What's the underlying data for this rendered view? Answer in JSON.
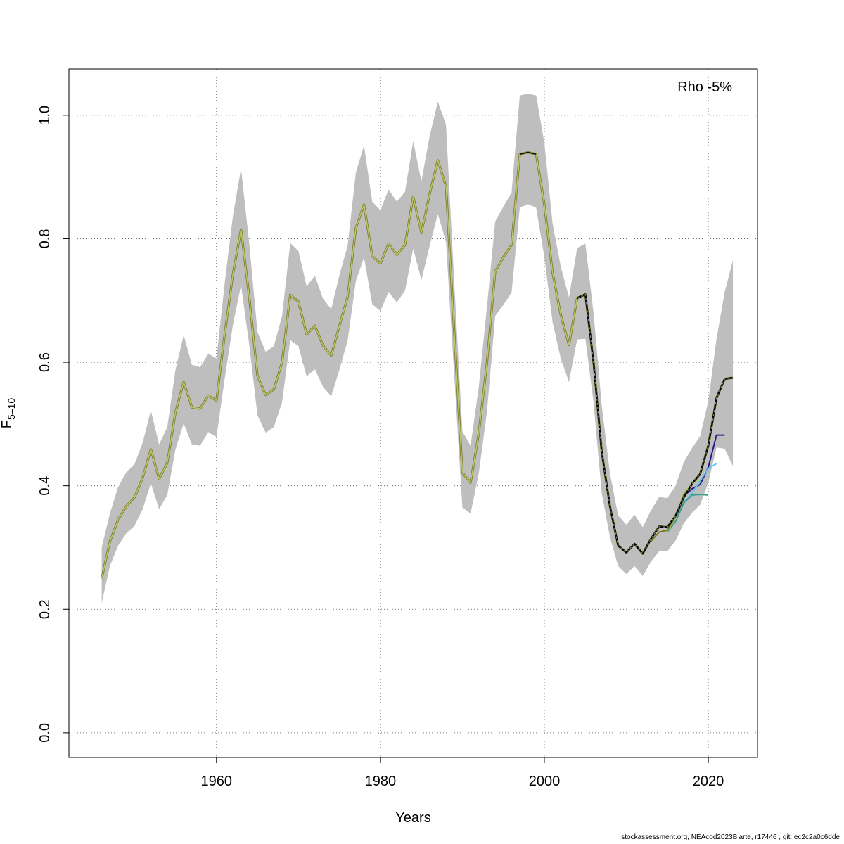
{
  "chart_data": {
    "type": "line",
    "annotation": "Rho -5%",
    "xlabel": "Years",
    "ylabel_main": "F",
    "ylabel_sub": "5–10",
    "xlim": [
      1942,
      2026
    ],
    "ylim": [
      -0.04,
      1.075
    ],
    "xticks": [
      1960,
      1980,
      2000,
      2020
    ],
    "yticks": [
      0.0,
      0.2,
      0.4,
      0.6,
      0.8,
      1.0
    ],
    "grid": true,
    "footer": "stockassessment.org, NEAcod2023Bjarte, r17446 , git: ec2c2a0c6dde",
    "colors": {
      "band": "#bebebe",
      "main": "#000000",
      "dashed": "#888888",
      "peels": [
        "#2a1b84",
        "#5fc6f2",
        "#3a9e8c",
        "#b9c56b",
        "#7a7a22",
        "#c8a030"
      ]
    },
    "x": [
      1946,
      1947,
      1948,
      1949,
      1950,
      1951,
      1952,
      1953,
      1954,
      1955,
      1956,
      1957,
      1958,
      1959,
      1960,
      1961,
      1962,
      1963,
      1964,
      1965,
      1966,
      1967,
      1968,
      1969,
      1970,
      1971,
      1972,
      1973,
      1974,
      1975,
      1976,
      1977,
      1978,
      1979,
      1980,
      1981,
      1982,
      1983,
      1984,
      1985,
      1986,
      1987,
      1988,
      1989,
      1990,
      1991,
      1992,
      1993,
      1994,
      1995,
      1996,
      1997,
      1998,
      1999,
      2000,
      2001,
      2002,
      2003,
      2004,
      2005,
      2006,
      2007,
      2008,
      2009,
      2010,
      2011,
      2012,
      2013,
      2014,
      2015,
      2016,
      2017,
      2018,
      2019,
      2020,
      2021,
      2022,
      2023
    ],
    "estimate": [
      0.25,
      0.31,
      0.345,
      0.367,
      0.381,
      0.413,
      0.459,
      0.411,
      0.437,
      0.519,
      0.568,
      0.527,
      0.525,
      0.546,
      0.538,
      0.645,
      0.742,
      0.815,
      0.705,
      0.578,
      0.547,
      0.556,
      0.6,
      0.709,
      0.698,
      0.645,
      0.659,
      0.627,
      0.611,
      0.659,
      0.706,
      0.817,
      0.855,
      0.772,
      0.76,
      0.792,
      0.774,
      0.79,
      0.868,
      0.81,
      0.872,
      0.927,
      0.885,
      0.65,
      0.421,
      0.405,
      0.485,
      0.6,
      0.747,
      0.77,
      0.79,
      0.937,
      0.94,
      0.937,
      0.855,
      0.745,
      0.677,
      0.628,
      0.704,
      0.71,
      0.6,
      0.455,
      0.367,
      0.303,
      0.292,
      0.306,
      0.29,
      0.314,
      0.334,
      0.333,
      0.351,
      0.381,
      0.403,
      0.419,
      0.465,
      0.542,
      0.573,
      0.575
    ],
    "lower": [
      0.21,
      0.27,
      0.303,
      0.323,
      0.335,
      0.362,
      0.404,
      0.362,
      0.385,
      0.459,
      0.501,
      0.467,
      0.465,
      0.487,
      0.479,
      0.573,
      0.66,
      0.725,
      0.628,
      0.514,
      0.486,
      0.495,
      0.535,
      0.636,
      0.626,
      0.577,
      0.589,
      0.56,
      0.545,
      0.588,
      0.635,
      0.731,
      0.77,
      0.694,
      0.683,
      0.714,
      0.697,
      0.716,
      0.784,
      0.733,
      0.788,
      0.84,
      0.795,
      0.58,
      0.365,
      0.355,
      0.42,
      0.52,
      0.675,
      0.693,
      0.713,
      0.85,
      0.856,
      0.85,
      0.77,
      0.665,
      0.606,
      0.568,
      0.637,
      0.638,
      0.535,
      0.388,
      0.317,
      0.27,
      0.257,
      0.27,
      0.254,
      0.277,
      0.294,
      0.294,
      0.311,
      0.339,
      0.356,
      0.369,
      0.405,
      0.462,
      0.46,
      0.432
    ],
    "upper": [
      0.3,
      0.355,
      0.398,
      0.422,
      0.435,
      0.47,
      0.522,
      0.467,
      0.495,
      0.588,
      0.644,
      0.596,
      0.592,
      0.614,
      0.606,
      0.728,
      0.836,
      0.914,
      0.792,
      0.649,
      0.617,
      0.626,
      0.675,
      0.793,
      0.78,
      0.723,
      0.74,
      0.703,
      0.686,
      0.741,
      0.789,
      0.907,
      0.951,
      0.86,
      0.846,
      0.88,
      0.86,
      0.876,
      0.958,
      0.893,
      0.966,
      1.022,
      0.985,
      0.73,
      0.488,
      0.465,
      0.56,
      0.69,
      0.828,
      0.852,
      0.875,
      1.032,
      1.035,
      1.032,
      0.955,
      0.825,
      0.755,
      0.705,
      0.785,
      0.792,
      0.68,
      0.53,
      0.42,
      0.352,
      0.337,
      0.353,
      0.333,
      0.36,
      0.382,
      0.38,
      0.4,
      0.438,
      0.461,
      0.48,
      0.537,
      0.638,
      0.714,
      0.765
    ],
    "peels": [
      {
        "x": [
          2016,
          2017,
          2018,
          2019,
          2020,
          2021,
          2022
        ],
        "y": [
          0.346,
          0.383,
          0.395,
          0.402,
          0.43,
          0.482,
          0.482
        ]
      },
      {
        "x": [
          2016,
          2017,
          2018,
          2019,
          2020,
          2021
        ],
        "y": [
          0.342,
          0.373,
          0.388,
          0.408,
          0.428,
          0.436
        ]
      },
      {
        "x": [
          2015,
          2016,
          2017,
          2018,
          2019,
          2020
        ],
        "y": [
          0.325,
          0.342,
          0.372,
          0.385,
          0.386,
          0.385
        ]
      },
      {
        "x": [
          2014,
          2015,
          2016,
          2017,
          2018,
          2019
        ],
        "y": [
          0.325,
          0.327,
          0.347,
          0.388,
          0.403,
          0.41
        ]
      },
      {
        "x": [
          2013,
          2014,
          2015,
          2016,
          2017,
          2018
        ],
        "y": [
          0.31,
          0.325,
          0.328,
          0.35,
          0.385,
          0.4
        ]
      }
    ]
  }
}
